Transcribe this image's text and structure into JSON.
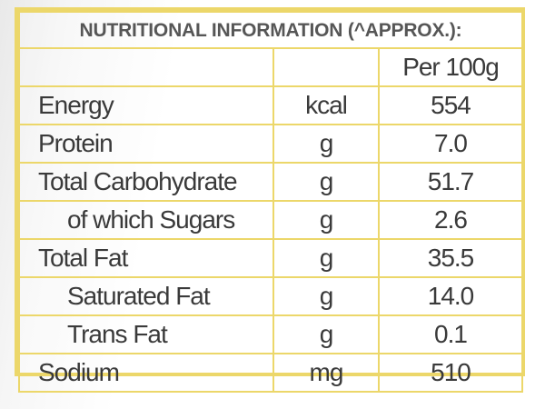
{
  "title": "NUTRITIONAL INFORMATION (^APPROX.):",
  "column_headers": {
    "name": "",
    "unit": "",
    "value": "Per 100g"
  },
  "rows": [
    {
      "name": "Energy",
      "unit": "kcal",
      "value": "554",
      "indent": false
    },
    {
      "name": "Protein",
      "unit": "g",
      "value": "7.0",
      "indent": false
    },
    {
      "name": "Total Carbohydrate",
      "unit": "g",
      "value": "51.7",
      "indent": false
    },
    {
      "name": "of which Sugars",
      "unit": "g",
      "value": "2.6",
      "indent": true
    },
    {
      "name": "Total Fat",
      "unit": "g",
      "value": "35.5",
      "indent": false
    },
    {
      "name": "Saturated Fat",
      "unit": "g",
      "value": "14.0",
      "indent": true
    },
    {
      "name": "Trans Fat",
      "unit": "g",
      "value": "0.1",
      "indent": true
    },
    {
      "name": "Sodium",
      "unit": "mg",
      "value": "510",
      "indent": false
    }
  ],
  "colors": {
    "border": "#ecd76a",
    "text": "#3a3a3a",
    "title_text": "#565656"
  }
}
